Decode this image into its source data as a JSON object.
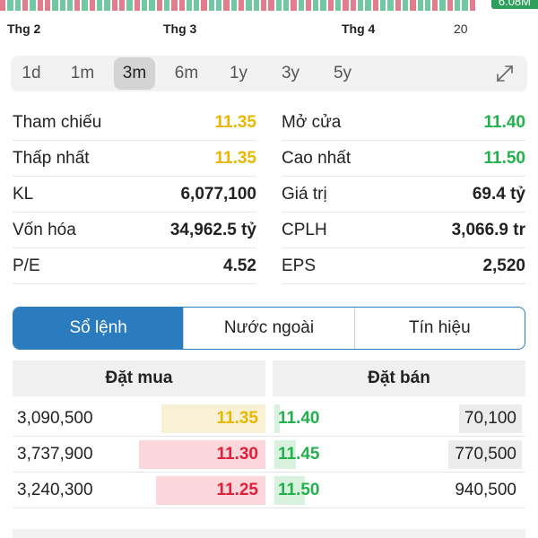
{
  "volume_badge": "6.08M",
  "volume_bar_colors": [
    "#e37c8c",
    "#71c8a3",
    "#71c8a3",
    "#e37c8c",
    "#71c8a3",
    "#e37c8c",
    "#e37c8c",
    "#71c8a3",
    "#71c8a3",
    "#71c8a3",
    "#e37c8c",
    "#71c8a3",
    "#e37c8c",
    "#71c8a3",
    "#71c8a3",
    "#e37c8c",
    "#e37c8c",
    "#71c8a3",
    "#e37c8c",
    "#71c8a3",
    "#71c8a3",
    "#e37c8c",
    "#71c8a3",
    "#e37c8c",
    "#e37c8c",
    "#71c8a3",
    "#71c8a3",
    "#e37c8c",
    "#71c8a3",
    "#71c8a3",
    "#e37c8c",
    "#71c8a3",
    "#e37c8c",
    "#71c8a3",
    "#71c8a3",
    "#e37c8c",
    "#e37c8c",
    "#71c8a3",
    "#71c8a3",
    "#e37c8c",
    "#71c8a3",
    "#e37c8c",
    "#71c8a3",
    "#71c8a3",
    "#e37c8c",
    "#71c8a3",
    "#e37c8c",
    "#e37c8c",
    "#71c8a3",
    "#71c8a3",
    "#e37c8c",
    "#71c8a3",
    "#71c8a3",
    "#e37c8c",
    "#71c8a3",
    "#e37c8c",
    "#71c8a3",
    "#71c8a3",
    "#e37c8c",
    "#71c8a3",
    "#e37c8c",
    "#71c8a3",
    "#71c8a3",
    "#e37c8c"
  ],
  "xaxis": {
    "labels": [
      "Thg 2",
      "Thg 3",
      "Thg 4",
      "20"
    ]
  },
  "periods": {
    "items": [
      "1d",
      "1m",
      "3m",
      "6m",
      "1y",
      "3y",
      "5y"
    ],
    "active": "3m",
    "expand_icon": "expand-icon"
  },
  "stats": {
    "rows": [
      {
        "left_label": "Tham chiếu",
        "left_value": "11.35",
        "right_label": "Mở cửa",
        "right_value": "11.40"
      },
      {
        "left_label": "Thấp nhất",
        "left_value": "11.35",
        "right_label": "Cao nhất",
        "right_value": "11.50"
      },
      {
        "left_label": "KL",
        "left_value": "6,077,100",
        "right_label": "Giá trị",
        "right_value": "69.4 tỷ"
      },
      {
        "left_label": "Vốn hóa",
        "left_value": "34,962.5 tỷ",
        "right_label": "CPLH",
        "right_value": "3,066.9 tr"
      },
      {
        "left_label": "P/E",
        "left_value": "4.52",
        "right_label": "EPS",
        "right_value": "2,520"
      }
    ]
  },
  "tabs": {
    "items": [
      "Sổ lệnh",
      "Nước ngoài",
      "Tín hiệu"
    ],
    "active": "Sổ lệnh"
  },
  "order_book": {
    "buy_header": "Đặt mua",
    "sell_header": "Đặt bán",
    "rows": [
      {
        "buy_qty": "3,090,500",
        "buy_price": "11.35",
        "sell_price": "11.40",
        "sell_qty": "70,100"
      },
      {
        "buy_qty": "3,737,900",
        "buy_price": "11.30",
        "sell_price": "11.45",
        "sell_qty": "770,500"
      },
      {
        "buy_qty": "3,240,300",
        "buy_price": "11.25",
        "sell_price": "11.50",
        "sell_qty": "940,500"
      }
    ]
  },
  "colors": {
    "accent": "#2b7bbf",
    "reference_yellow": "#e6b800",
    "up_green": "#22b14c",
    "down_red": "#e0203a",
    "buy_bar_yellow": "#f8f1d6",
    "buy_bar_red": "#fbd6da",
    "sell_bar_green": "#d9f2dd",
    "sell_qty_bar": "#ececec"
  }
}
